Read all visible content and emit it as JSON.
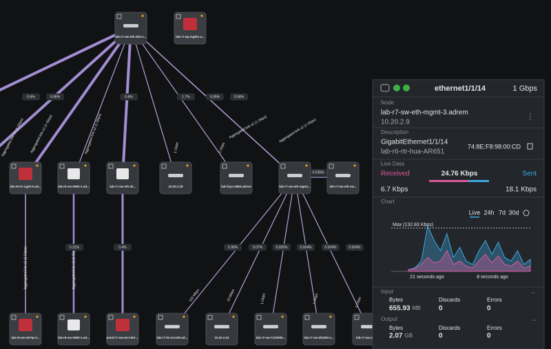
{
  "map": {
    "nodes": [
      {
        "label": "lab-r7-sw-eth-dist-s..."
      },
      {
        "label": "lab-r7-ap-mgt01-a..."
      },
      {
        "label": "lab-r6-rtr-cg20-0-ad..."
      },
      {
        "label": "lab-r6-sw-2960-1-ad..."
      },
      {
        "label": "lab-r7-sw-eth-dt..."
      },
      {
        "label": "10.20.2.29"
      },
      {
        "label": "lab-fuyo-2960.adrem"
      },
      {
        "label": "lab-r7-sw-eth-mgmt..."
      },
      {
        "label": "lab-r7-sw-eth-sw..."
      },
      {
        "label": "lab-r6-sw-s8-hp-2..."
      },
      {
        "label": "lab-r6-sw-2960-1-ad..."
      },
      {
        "label": "pmsl-r7-sw-s6-t-dst-..."
      },
      {
        "label": "lab-r7-fw-srx100-ad..."
      },
      {
        "label": "10.20.2.22"
      },
      {
        "label": "lab-r7-sw-7120000..."
      },
      {
        "label": "lab-r7-sw-dl1000-a..."
      },
      {
        "label": "lab-r7-sw-sfp-u..."
      }
    ],
    "link_labels": [
      "0.6%",
      "0.06%",
      "0.6%",
      "1.7%",
      "0.05%",
      "0.04%",
      "0.035%",
      "0.31%",
      "0.4%",
      "0.06%",
      "0.07%",
      "0.005%",
      "0.004%",
      "0.004%",
      "0.004%"
    ],
    "link_texts": [
      "Aggregated link x2 (1 Gbps)",
      "Aggregated link x2 (1 Gbps)",
      "Aggregated link x2 (1 Gbps)",
      "1 Gbps",
      "1 Gbps",
      "Aggregated link x2 (1 Gbps)",
      "Aggregated link x2 (1 Gbps)",
      "Aggregated link x2 (1 Gbps)",
      "Aggregated link x2 (1 Gbps)",
      "100 Mbps",
      "10 Mbps",
      "1 Gbps",
      "1 Gbps",
      "1 Gbps"
    ]
  },
  "panel": {
    "title": "ethernet1/1/14",
    "speed": "1 Gbps",
    "node_heading": "Node",
    "node_name": "lab-r7-sw-eth-mgmt-3.adrem",
    "node_ip": "10.20.2.9",
    "description_heading": "Description",
    "description": "GigabitEthernet1/1/14",
    "peer": "lab-r6-rtr-hua-AR651",
    "mac": "74:8E:F8:98:00:CD",
    "live_heading": "Live Data",
    "received_label": "Received",
    "total": "24.76 Kbps",
    "sent_label": "Sent",
    "received": "6.7 Kbps",
    "sent": "18.1 Kbps",
    "chart_heading": "Chart",
    "tabs": [
      "Live",
      "24h",
      "7d",
      "30d"
    ],
    "input_heading": "Input",
    "output_heading": "Output",
    "input": {
      "bytes_label": "Bytes",
      "bytes": "655.93",
      "bytes_unit": "MB",
      "discards_label": "Discards",
      "discards": "0",
      "errors_label": "Errors",
      "errors": "0"
    },
    "output": {
      "bytes_label": "Bytes",
      "bytes": "2.07",
      "bytes_unit": "GB",
      "discards_label": "Discards",
      "discards": "0",
      "errors_label": "Errors",
      "errors": "0"
    }
  },
  "chart_data": {
    "type": "area",
    "max_label": "Max (132.83 Kbps)",
    "x_labels": [
      "21 seconds ago",
      "8 seconds ago"
    ],
    "ylim": [
      0,
      150
    ],
    "series": [
      {
        "name": "Sent",
        "color": "#3fa9e0",
        "values": [
          5,
          10,
          30,
          132,
          90,
          60,
          110,
          40,
          70,
          30,
          20,
          60,
          90,
          50,
          85,
          40,
          30,
          60,
          20,
          35
        ]
      },
      {
        "name": "Received",
        "color": "#e05a9c",
        "values": [
          5,
          8,
          20,
          40,
          25,
          30,
          60,
          20,
          30,
          15,
          10,
          30,
          50,
          25,
          45,
          20,
          15,
          30,
          10,
          15
        ]
      }
    ]
  }
}
